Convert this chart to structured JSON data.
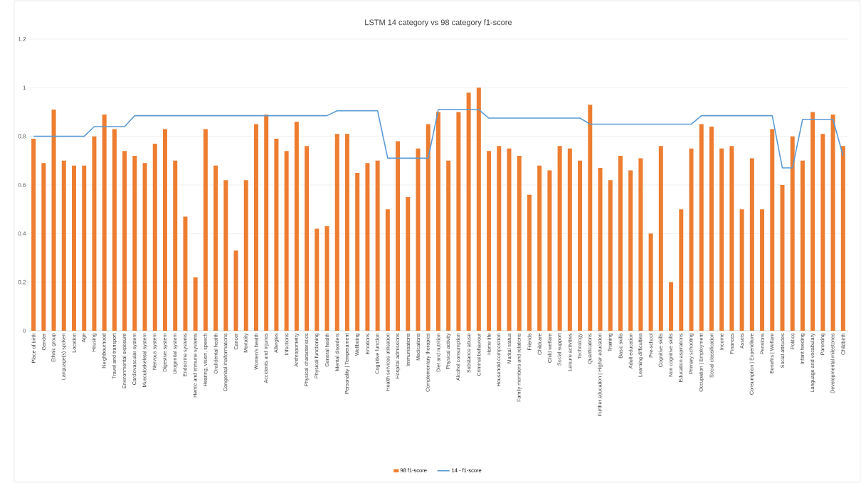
{
  "chart_data": {
    "type": "bar",
    "title": "LSTM 14 category vs 98 category f1-score",
    "categories": [
      "Place of birth",
      "Gender",
      "Ethnic group",
      "Language(s) spoken",
      "Location",
      "Age",
      "Housing",
      "Neighbourhood",
      "Travel and transport",
      "Environmental exposure",
      "Cardiovascular system",
      "Musculoskeletal system",
      "Nervous system",
      "Digestive system",
      "Urogenital system",
      "Endocrine systems",
      "Hemic and immune systems",
      "Hearing, vision, speech",
      "Oral/dental health",
      "Congenital malformations",
      "Cancer",
      "Mortality",
      "Women's health",
      "Accidents and injuries",
      "Allergies",
      "Infections",
      "Anthropometry",
      "Physical characteristics",
      "Physical functioning",
      "General health",
      "Mental disorders",
      "Personality | Temperament",
      "Wellbeing",
      "Emotions",
      "Cognitive function",
      "Health services utilisation",
      "Hospital admissions",
      "Immunisations",
      "Medications",
      "Complementary therapies",
      "Diet and nutrition",
      "Physical activity",
      "Alcohol consumption",
      "Substance abuse",
      "Criminal behaviour",
      "Home life",
      "Household composition",
      "Marital status",
      "Family members and relations",
      "Friends",
      "Childcare",
      "Child welfare",
      "Social support",
      "Leisure activities",
      "Technology",
      "Qualifications",
      "Further education | Higher education",
      "Training",
      "Basic skills",
      "Adult education",
      "Learning difficulties",
      "Pre-school",
      "Cognitive skills",
      "Non cognitive skills",
      "Education aspirations",
      "Primary schooling",
      "Occupation | Employment",
      "Social classification",
      "Income",
      "Finances",
      "Assets",
      "Consumption | Expenditure",
      "Pensions",
      "Benefits | Welfare",
      "Social attitudes",
      "Politics",
      "Infant feeding",
      "Language and vocabulary",
      "Parenting",
      "Developmental milestones",
      "Childbirth"
    ],
    "series": [
      {
        "name": "98 f1-score",
        "color": "#ed7d31",
        "values": [
          0.79,
          0.69,
          0.91,
          0.7,
          0.68,
          0.68,
          0.8,
          0.89,
          0.83,
          0.74,
          0.72,
          0.69,
          0.77,
          0.83,
          0.7,
          0.47,
          0.22,
          0.83,
          0.68,
          0.62,
          0.33,
          0.62,
          0.85,
          0.89,
          0.79,
          0.74,
          0.86,
          0.76,
          0.42,
          0.43,
          0.81,
          0.81,
          0.65,
          0.69,
          0.7,
          0.5,
          0.78,
          0.55,
          0.75,
          0.85,
          0.9,
          0.7,
          0.9,
          0.98,
          1.0,
          0.74,
          0.76,
          0.75,
          0.72,
          0.56,
          0.68,
          0.66,
          0.76,
          0.75,
          0.7,
          0.93,
          0.67,
          0.62,
          0.72,
          0.66,
          0.71,
          0.4,
          0.76,
          0.2,
          0.5,
          0.75,
          0.85,
          0.84,
          0.75,
          0.76,
          0.5,
          0.71,
          0.5,
          0.83,
          0.6,
          0.8,
          0.7,
          0.9,
          0.81,
          0.89,
          0.76
        ]
      },
      {
        "name": "14 - f1-score",
        "type": "line",
        "color": "#5b9bd5",
        "values": [
          0.8,
          0.8,
          0.8,
          0.8,
          0.8,
          0.8,
          0.84,
          0.84,
          0.84,
          0.84,
          0.885,
          0.885,
          0.885,
          0.885,
          0.885,
          0.885,
          0.885,
          0.885,
          0.885,
          0.885,
          0.885,
          0.885,
          0.885,
          0.885,
          0.885,
          0.885,
          0.885,
          0.885,
          0.885,
          0.885,
          0.905,
          0.905,
          0.905,
          0.905,
          0.905,
          0.71,
          0.71,
          0.71,
          0.71,
          0.71,
          0.91,
          0.91,
          0.91,
          0.91,
          0.91,
          0.875,
          0.875,
          0.875,
          0.875,
          0.875,
          0.875,
          0.875,
          0.875,
          0.875,
          0.875,
          0.85,
          0.85,
          0.85,
          0.85,
          0.85,
          0.85,
          0.85,
          0.85,
          0.85,
          0.85,
          0.85,
          0.885,
          0.885,
          0.885,
          0.885,
          0.885,
          0.885,
          0.885,
          0.885,
          0.67,
          0.67,
          0.87,
          0.87,
          0.87,
          0.87,
          0.72
        ]
      }
    ],
    "ylim": [
      0,
      1.2
    ],
    "yticks": [
      0,
      0.2,
      0.4,
      0.6,
      0.8,
      1,
      1.2
    ],
    "grid": "y",
    "legend": "bottom"
  }
}
